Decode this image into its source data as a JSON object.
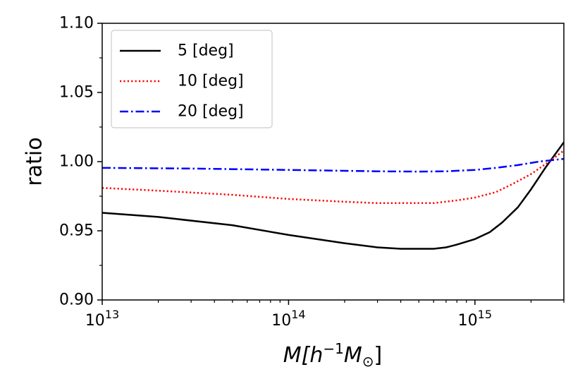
{
  "chart_data": {
    "type": "line",
    "xscale": "log",
    "xlim": [
      10000000000000.0,
      3000000000000000.0
    ],
    "ylim": [
      0.9,
      1.1
    ],
    "xlabel": "M[h^{-1}M_⊙]",
    "xlabel_parts": {
      "main": "M[h",
      "sup": "−1",
      "mid": "M",
      "sub": "⊙",
      "end": "]"
    },
    "ylabel": "ratio",
    "x_ticks": [
      {
        "value": 10000000000000.0,
        "base": "10",
        "exp": "13"
      },
      {
        "value": 100000000000000.0,
        "base": "10",
        "exp": "14"
      },
      {
        "value": 1000000000000000.0,
        "base": "10",
        "exp": "15"
      }
    ],
    "y_ticks": [
      {
        "value": 0.9,
        "label": "0.90"
      },
      {
        "value": 0.95,
        "label": "0.95"
      },
      {
        "value": 1.0,
        "label": "1.00"
      },
      {
        "value": 1.05,
        "label": "1.05"
      },
      {
        "value": 1.1,
        "label": "1.10"
      }
    ],
    "y_minor_ticks": [
      0.925,
      0.975,
      1.025,
      1.075
    ],
    "legend_position": "top-left",
    "series": [
      {
        "name": "5 [deg]",
        "color": "#000000",
        "dash": "solid",
        "x": [
          10000000000000.0,
          20000000000000.0,
          50000000000000.0,
          100000000000000.0,
          200000000000000.0,
          300000000000000.0,
          400000000000000.0,
          500000000000000.0,
          600000000000000.0,
          700000000000000.0,
          800000000000000.0,
          1000000000000000.0,
          1200000000000000.0,
          1400000000000000.0,
          1700000000000000.0,
          2000000000000000.0,
          2400000000000000.0,
          3000000000000000.0
        ],
        "y": [
          0.963,
          0.96,
          0.954,
          0.947,
          0.941,
          0.938,
          0.937,
          0.937,
          0.937,
          0.938,
          0.94,
          0.944,
          0.949,
          0.956,
          0.967,
          0.98,
          0.996,
          1.014
        ]
      },
      {
        "name": "10 [deg]",
        "color": "#ff0000",
        "dash": "dotted",
        "x": [
          10000000000000.0,
          20000000000000.0,
          50000000000000.0,
          100000000000000.0,
          200000000000000.0,
          300000000000000.0,
          400000000000000.0,
          500000000000000.0,
          600000000000000.0,
          800000000000000.0,
          1000000000000000.0,
          1300000000000000.0,
          1600000000000000.0,
          2000000000000000.0,
          2500000000000000.0,
          3000000000000000.0
        ],
        "y": [
          0.981,
          0.979,
          0.976,
          0.973,
          0.971,
          0.97,
          0.97,
          0.97,
          0.97,
          0.972,
          0.974,
          0.978,
          0.984,
          0.991,
          1.0,
          1.008
        ]
      },
      {
        "name": "20 [deg]",
        "color": "#0000ff",
        "dash": "dashdot",
        "x": [
          10000000000000.0,
          30000000000000.0,
          100000000000000.0,
          300000000000000.0,
          500000000000000.0,
          700000000000000.0,
          1000000000000000.0,
          1300000000000000.0,
          1700000000000000.0,
          2200000000000000.0,
          3000000000000000.0
        ],
        "y": [
          0.9955,
          0.995,
          0.994,
          0.993,
          0.9928,
          0.993,
          0.994,
          0.9955,
          0.9975,
          1.0,
          1.002
        ]
      }
    ]
  }
}
